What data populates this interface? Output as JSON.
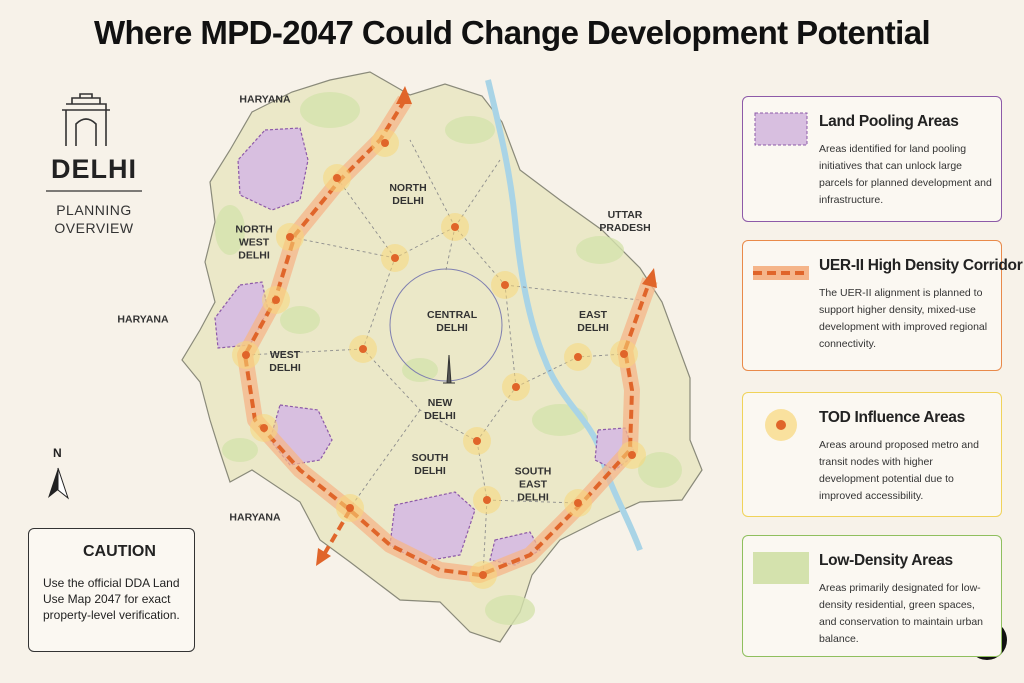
{
  "header": {
    "title": "Where MPD-2047 Could Change Development Potential"
  },
  "brand": {
    "name": "DELHI",
    "subtitle": "PLANNING OVERVIEW"
  },
  "map": {
    "labels": [
      "HARYANA",
      "NORTH WEST DELHI",
      "NORTH DELHI",
      "UTTAR PRADESH",
      "HARYANA",
      "CENTRAL DELHI",
      "EAST DELHI",
      "WEST DELHI",
      "NEW DELHI",
      "SOUTH DELHI",
      "SOUTH EAST DELHI",
      "HARYANA"
    ],
    "compass": "N"
  },
  "caution": {
    "title": "CAUTION",
    "text": "Use the official DDA Land Use Map 2047 for exact property-level verification."
  },
  "legend": {
    "items": [
      {
        "title": "Land Pooling Areas",
        "description": "Areas identified for land pooling initiatives that can unlock large parcels for planned development and infrastructure."
      },
      {
        "title": "UER-II High Density Corridor",
        "description": "The UER-II alignment is planned to support higher density, mixed-use development with improved regional connectivity."
      },
      {
        "title": "TOD Influence Areas",
        "description": "Areas around proposed metro and transit nodes with higher development potential due to improved accessibility."
      },
      {
        "title": "Low-Density Areas",
        "description": "Areas primarily designated for low-density residential, green spaces, and conservation to maintain urban balance."
      }
    ]
  }
}
